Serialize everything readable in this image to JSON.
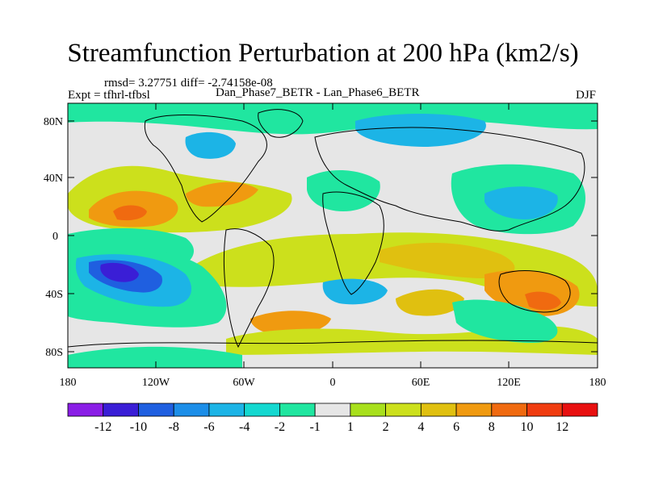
{
  "title": "Streamfunction Perturbation at 200 hPa (km2/s)",
  "stats": "rmsd= 3.27751 diff= -2.74158e-08",
  "expt": "Expt = tfhrl-tfbsl",
  "subtitle": "Dan_Phase7_BETR - Lan_Phase6_BETR",
  "season": "DJF",
  "lat_labels": [
    "80N",
    "40N",
    "0",
    "40S",
    "80S"
  ],
  "lon_labels": [
    "180",
    "120W",
    "60W",
    "0",
    "60E",
    "120E",
    "180"
  ],
  "colorbar": {
    "labels": [
      "-12",
      "-10",
      "-8",
      "-6",
      "-4",
      "-2",
      "-1",
      "1",
      "2",
      "4",
      "6",
      "8",
      "10",
      "12"
    ],
    "colors": [
      "#8a1ee6",
      "#3a1ed6",
      "#1f5fe0",
      "#1c8ee8",
      "#1cb4e6",
      "#14d8d0",
      "#20e6a0",
      "#e6e6e6",
      "#a8e01c",
      "#cce01c",
      "#e0c010",
      "#f09a10",
      "#f06a10",
      "#f03c10",
      "#e81010"
    ]
  },
  "legend": {
    "colors_semantic": {
      "strong_negative": "#3a1ed6",
      "negative": "#1cb4e6",
      "neutral": "#e6e6e6",
      "positive": "#cce01c",
      "strong_positive": "#f06a10"
    }
  }
}
